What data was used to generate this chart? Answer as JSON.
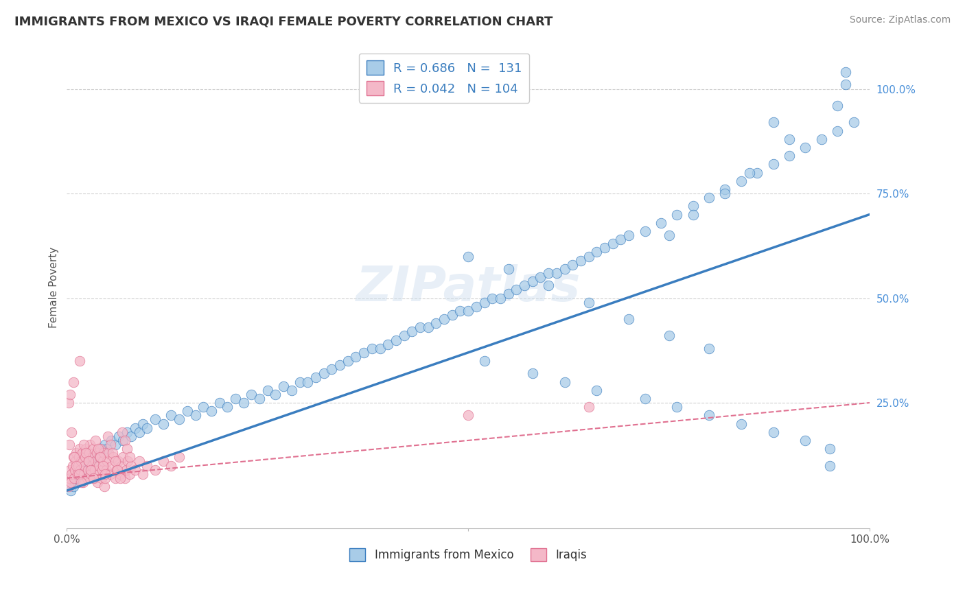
{
  "title": "IMMIGRANTS FROM MEXICO VS IRAQI FEMALE POVERTY CORRELATION CHART",
  "source": "Source: ZipAtlas.com",
  "ylabel": "Female Poverty",
  "xlim": [
    0,
    1.0
  ],
  "ylim": [
    -0.05,
    1.1
  ],
  "ytick_labels_right": [
    "100.0%",
    "75.0%",
    "50.0%",
    "25.0%"
  ],
  "ytick_vals_right": [
    1.0,
    0.75,
    0.5,
    0.25
  ],
  "watermark": "ZIPatlas",
  "legend_r1": "R = 0.686",
  "legend_n1": "N =  131",
  "legend_r2": "R = 0.042",
  "legend_n2": "N = 104",
  "color_blue": "#a8cce8",
  "color_pink": "#f4b8c8",
  "color_blue_line": "#3a7dbf",
  "color_pink_line": "#e07090",
  "blue_line_x": [
    0.0,
    1.0
  ],
  "blue_line_y": [
    0.04,
    0.7
  ],
  "pink_line_x": [
    0.0,
    1.0
  ],
  "pink_line_y": [
    0.07,
    0.25
  ],
  "grid_color": "#d0d0d0",
  "background_color": "#ffffff",
  "blue_scatter_x": [
    0.005,
    0.008,
    0.01,
    0.012,
    0.015,
    0.018,
    0.02,
    0.022,
    0.025,
    0.028,
    0.03,
    0.033,
    0.035,
    0.038,
    0.04,
    0.043,
    0.045,
    0.048,
    0.05,
    0.055,
    0.06,
    0.065,
    0.07,
    0.075,
    0.08,
    0.085,
    0.09,
    0.095,
    0.1,
    0.11,
    0.12,
    0.13,
    0.14,
    0.15,
    0.16,
    0.17,
    0.18,
    0.19,
    0.2,
    0.21,
    0.22,
    0.23,
    0.24,
    0.25,
    0.26,
    0.27,
    0.28,
    0.29,
    0.3,
    0.31,
    0.32,
    0.33,
    0.34,
    0.35,
    0.36,
    0.37,
    0.38,
    0.39,
    0.4,
    0.41,
    0.42,
    0.43,
    0.44,
    0.45,
    0.46,
    0.47,
    0.48,
    0.49,
    0.5,
    0.51,
    0.52,
    0.53,
    0.54,
    0.55,
    0.56,
    0.57,
    0.58,
    0.59,
    0.6,
    0.61,
    0.62,
    0.63,
    0.64,
    0.65,
    0.66,
    0.67,
    0.68,
    0.69,
    0.7,
    0.72,
    0.74,
    0.76,
    0.78,
    0.8,
    0.82,
    0.84,
    0.86,
    0.88,
    0.9,
    0.92,
    0.94,
    0.96,
    0.98,
    0.5,
    0.55,
    0.6,
    0.65,
    0.7,
    0.75,
    0.8,
    0.52,
    0.58,
    0.62,
    0.66,
    0.72,
    0.76,
    0.8,
    0.84,
    0.88,
    0.92,
    0.95,
    0.95,
    0.97,
    0.97,
    0.96,
    0.88,
    0.9,
    0.85,
    0.82,
    0.78,
    0.75
  ],
  "blue_scatter_y": [
    0.04,
    0.05,
    0.06,
    0.07,
    0.08,
    0.09,
    0.08,
    0.1,
    0.09,
    0.11,
    0.1,
    0.12,
    0.11,
    0.13,
    0.12,
    0.14,
    0.13,
    0.15,
    0.14,
    0.16,
    0.15,
    0.17,
    0.16,
    0.18,
    0.17,
    0.19,
    0.18,
    0.2,
    0.19,
    0.21,
    0.2,
    0.22,
    0.21,
    0.23,
    0.22,
    0.24,
    0.23,
    0.25,
    0.24,
    0.26,
    0.25,
    0.27,
    0.26,
    0.28,
    0.27,
    0.29,
    0.28,
    0.3,
    0.3,
    0.31,
    0.32,
    0.33,
    0.34,
    0.35,
    0.36,
    0.37,
    0.38,
    0.38,
    0.39,
    0.4,
    0.41,
    0.42,
    0.43,
    0.43,
    0.44,
    0.45,
    0.46,
    0.47,
    0.47,
    0.48,
    0.49,
    0.5,
    0.5,
    0.51,
    0.52,
    0.53,
    0.54,
    0.55,
    0.56,
    0.56,
    0.57,
    0.58,
    0.59,
    0.6,
    0.61,
    0.62,
    0.63,
    0.64,
    0.65,
    0.66,
    0.68,
    0.7,
    0.72,
    0.74,
    0.76,
    0.78,
    0.8,
    0.82,
    0.84,
    0.86,
    0.88,
    0.9,
    0.92,
    0.6,
    0.57,
    0.53,
    0.49,
    0.45,
    0.41,
    0.38,
    0.35,
    0.32,
    0.3,
    0.28,
    0.26,
    0.24,
    0.22,
    0.2,
    0.18,
    0.16,
    0.14,
    0.1,
    1.01,
    1.04,
    0.96,
    0.92,
    0.88,
    0.8,
    0.75,
    0.7,
    0.65
  ],
  "pink_scatter_x": [
    0.002,
    0.003,
    0.004,
    0.005,
    0.006,
    0.007,
    0.008,
    0.009,
    0.01,
    0.011,
    0.012,
    0.013,
    0.014,
    0.015,
    0.016,
    0.017,
    0.018,
    0.019,
    0.02,
    0.021,
    0.022,
    0.023,
    0.024,
    0.025,
    0.026,
    0.027,
    0.028,
    0.029,
    0.03,
    0.031,
    0.032,
    0.033,
    0.034,
    0.035,
    0.036,
    0.037,
    0.038,
    0.039,
    0.04,
    0.041,
    0.042,
    0.043,
    0.044,
    0.045,
    0.046,
    0.047,
    0.048,
    0.049,
    0.05,
    0.052,
    0.054,
    0.056,
    0.058,
    0.06,
    0.062,
    0.064,
    0.066,
    0.068,
    0.07,
    0.072,
    0.074,
    0.076,
    0.078,
    0.08,
    0.085,
    0.09,
    0.095,
    0.1,
    0.11,
    0.12,
    0.13,
    0.14,
    0.003,
    0.006,
    0.009,
    0.012,
    0.015,
    0.018,
    0.021,
    0.024,
    0.027,
    0.03,
    0.033,
    0.036,
    0.039,
    0.042,
    0.045,
    0.048,
    0.051,
    0.054,
    0.057,
    0.06,
    0.063,
    0.066,
    0.069,
    0.072,
    0.075,
    0.078,
    0.5,
    0.65,
    0.002,
    0.004,
    0.008,
    0.016
  ],
  "pink_scatter_y": [
    0.05,
    0.07,
    0.09,
    0.06,
    0.08,
    0.1,
    0.12,
    0.07,
    0.09,
    0.11,
    0.13,
    0.08,
    0.1,
    0.12,
    0.14,
    0.09,
    0.11,
    0.13,
    0.06,
    0.08,
    0.1,
    0.12,
    0.14,
    0.07,
    0.09,
    0.11,
    0.13,
    0.15,
    0.08,
    0.1,
    0.12,
    0.14,
    0.07,
    0.09,
    0.11,
    0.13,
    0.06,
    0.08,
    0.1,
    0.12,
    0.14,
    0.07,
    0.09,
    0.11,
    0.13,
    0.05,
    0.07,
    0.09,
    0.11,
    0.13,
    0.08,
    0.1,
    0.12,
    0.07,
    0.09,
    0.11,
    0.08,
    0.1,
    0.12,
    0.07,
    0.09,
    0.11,
    0.08,
    0.1,
    0.09,
    0.11,
    0.08,
    0.1,
    0.09,
    0.11,
    0.1,
    0.12,
    0.15,
    0.18,
    0.12,
    0.1,
    0.08,
    0.06,
    0.15,
    0.13,
    0.11,
    0.09,
    0.07,
    0.16,
    0.14,
    0.12,
    0.1,
    0.08,
    0.17,
    0.15,
    0.13,
    0.11,
    0.09,
    0.07,
    0.18,
    0.16,
    0.14,
    0.12,
    0.22,
    0.24,
    0.25,
    0.27,
    0.3,
    0.35
  ]
}
